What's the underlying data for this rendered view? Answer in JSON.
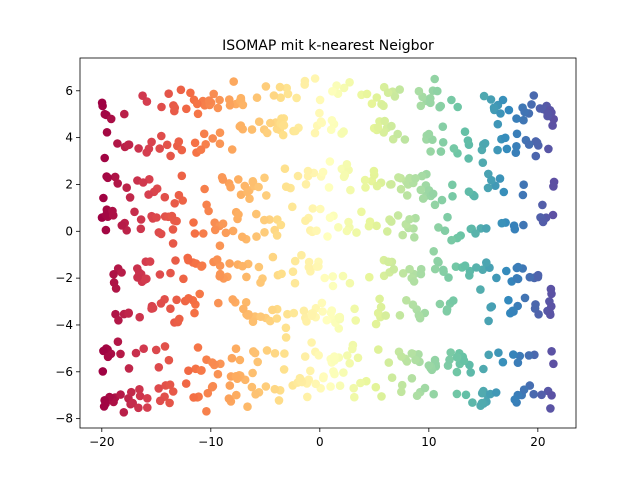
{
  "chart_data": {
    "type": "scatter",
    "title": "ISOMAP mit k-nearest Neigbor",
    "xlabel": "",
    "ylabel": "",
    "xlim": [
      -22,
      23.5
    ],
    "ylim": [
      -8.4,
      7.4
    ],
    "xticks": [
      -20,
      -10,
      0,
      10,
      20
    ],
    "yticks": [
      -8,
      -6,
      -4,
      -2,
      0,
      2,
      4,
      6
    ],
    "xtick_labels": [
      "−20",
      "−10",
      "0",
      "10",
      "20"
    ],
    "ytick_labels": [
      "−8",
      "−6",
      "−4",
      "−2",
      "0",
      "2",
      "4",
      "6"
    ],
    "colormap": [
      "#9e0142",
      "#d53e4f",
      "#f46d43",
      "#fdae61",
      "#fee08b",
      "#ffffbf",
      "#e6f598",
      "#abdda4",
      "#66c2a5",
      "#3288bd",
      "#5e4fa2"
    ],
    "color_encodes": "x",
    "grid": false,
    "bands": [
      {
        "y_end": 5.2,
        "y_mid": 5.5,
        "y_center": 6.0
      },
      {
        "y_end": 3.8,
        "y_mid": 3.6,
        "y_center": 4.6
      },
      {
        "y_end": 2.2,
        "y_mid": 1.5,
        "y_center": 2.4
      },
      {
        "y_end": 0.5,
        "y_mid": 0.0,
        "y_center": 0.4
      },
      {
        "y_end": -1.9,
        "y_mid": -1.7,
        "y_center": -1.6
      },
      {
        "y_end": -3.2,
        "y_mid": -3.2,
        "y_center": -3.6
      },
      {
        "y_end": -5.2,
        "y_mid": -5.6,
        "y_center": -5.4
      },
      {
        "y_end": -7.1,
        "y_mid": -7.0,
        "y_center": -6.5
      }
    ],
    "x_range": [
      -20,
      21.5
    ],
    "point_count": 800
  }
}
